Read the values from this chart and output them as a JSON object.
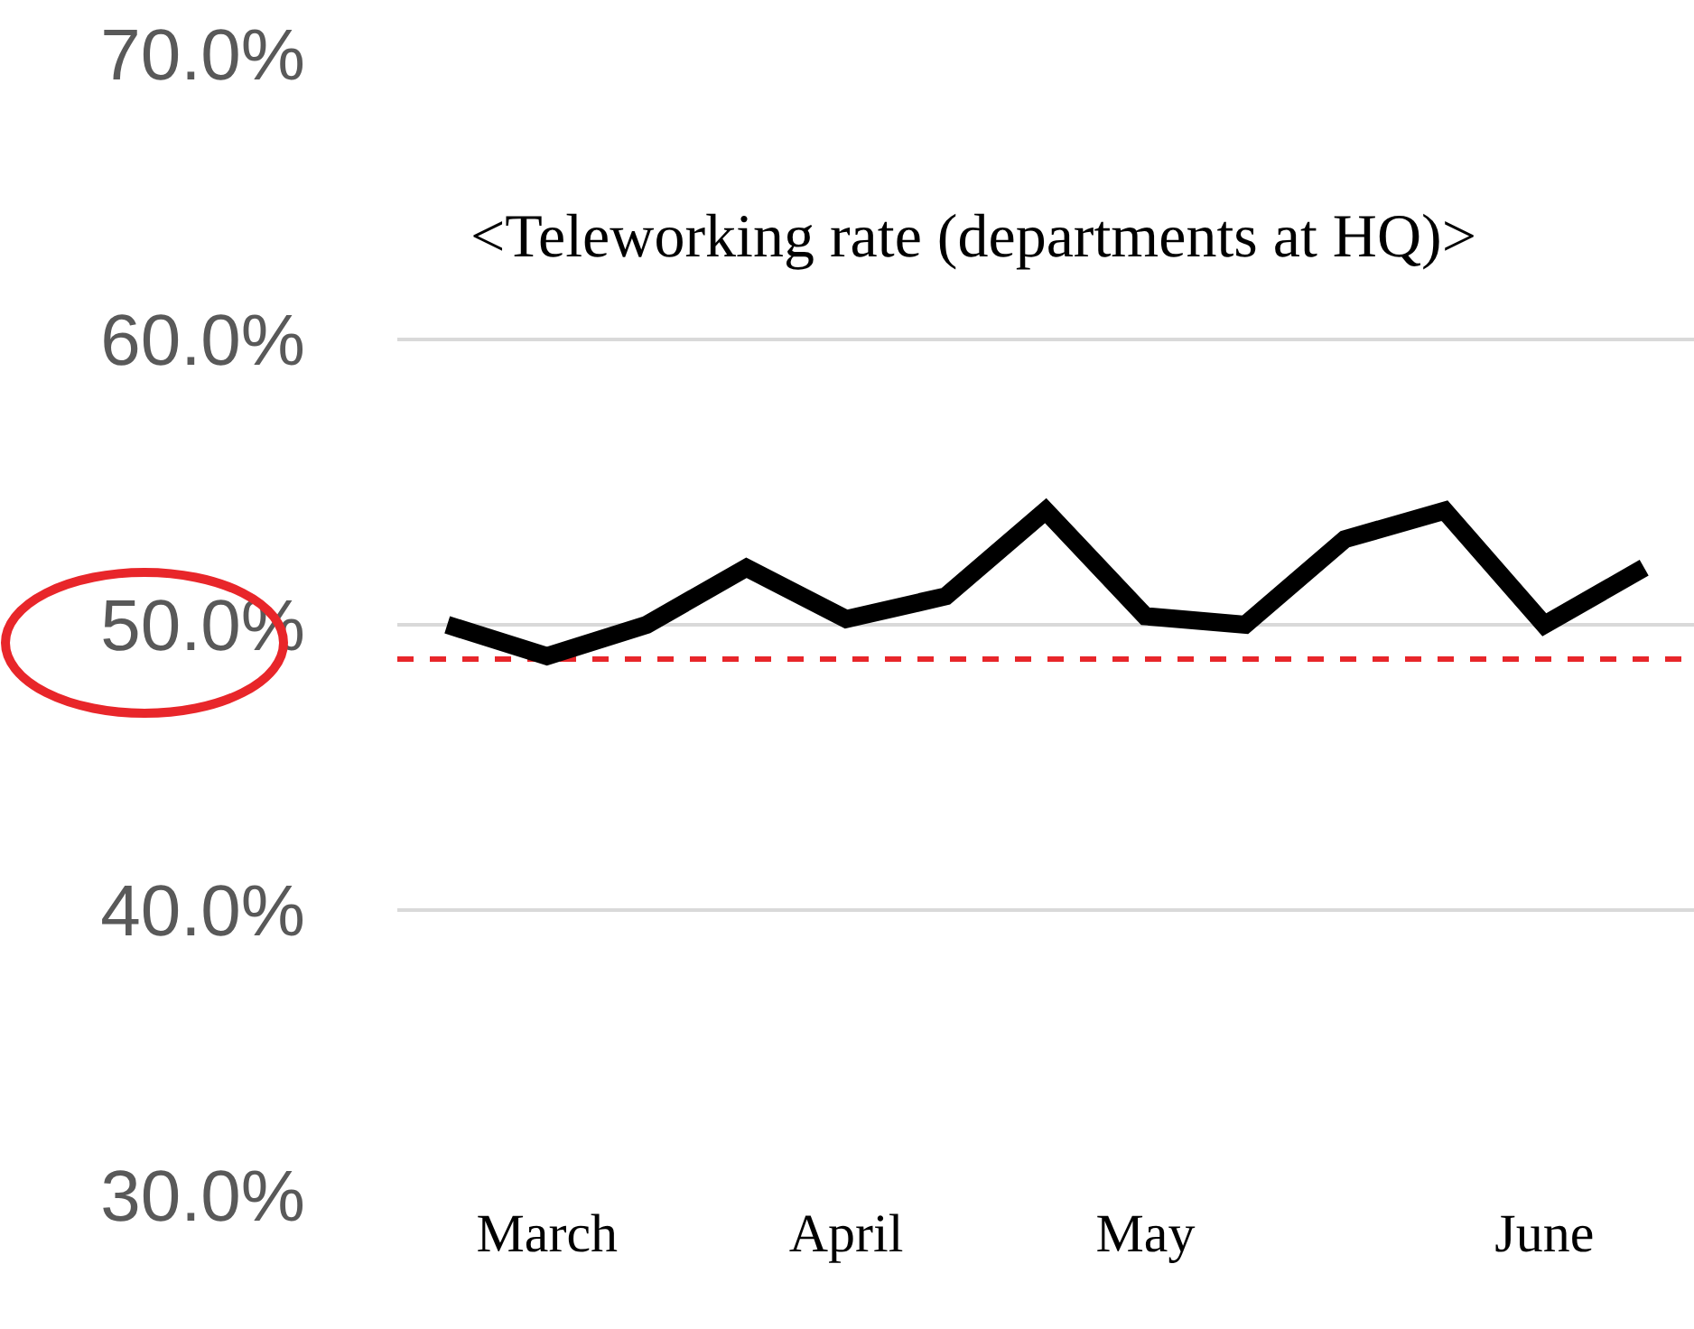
{
  "chart_data": {
    "type": "line",
    "title": "<Teleworking rate (departments at HQ)>",
    "categories": [
      null,
      "March",
      null,
      null,
      "April",
      null,
      null,
      "May",
      null,
      null,
      null,
      "June",
      null
    ],
    "series": [
      {
        "color": "#000000",
        "values": [
          50.0,
          48.9,
          50.0,
          52.0,
          50.2,
          51.0,
          54.0,
          50.3,
          50.0,
          53.0,
          54.0,
          50.0,
          52.0
        ]
      }
    ],
    "ylim": [
      30,
      70
    ],
    "yticks": [
      {
        "value": 30,
        "label": "30.0%"
      },
      {
        "value": 40,
        "label": "40.0%"
      },
      {
        "value": 50,
        "label": "50.0%"
      },
      {
        "value": 60,
        "label": "60.0%"
      },
      {
        "value": 70,
        "label": "70.0%"
      }
    ],
    "ref_lines": [
      {
        "axis": "y",
        "value": 48.8,
        "color": "#e8262a",
        "line_style": "dashed"
      }
    ],
    "grid": "y",
    "marker": "none",
    "line_style": "solid"
  }
}
